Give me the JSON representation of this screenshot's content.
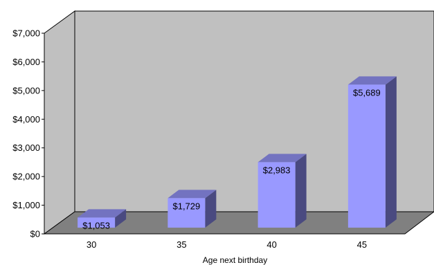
{
  "chart_data": {
    "type": "bar",
    "categories": [
      "30",
      "35",
      "40",
      "45"
    ],
    "values": [
      1053,
      1729,
      2983,
      5689
    ],
    "data_labels": [
      "$1,053",
      "$1,729",
      "$2,983",
      "$5,689"
    ],
    "title": "",
    "xlabel": "Age next birthday",
    "ylabel": "",
    "ylim": [
      0,
      7000
    ],
    "y_ticks": [
      0,
      1000,
      2000,
      3000,
      4000,
      5000,
      6000,
      7000
    ],
    "y_tick_labels": [
      "$0",
      "$1,000",
      "$2,000",
      "$3,000",
      "$4,000",
      "$5,000",
      "$6,000",
      "$7,000"
    ],
    "style": "3d",
    "grid": false,
    "legend": "none",
    "colors": {
      "bar_front": "#9999ff",
      "bar_side": "#4a4a80",
      "bar_top": "#7373c0",
      "back_wall": "#c0c0c0",
      "left_wall": "#c0c0c0",
      "floor": "#808080",
      "wall_edge": "#000000"
    }
  }
}
